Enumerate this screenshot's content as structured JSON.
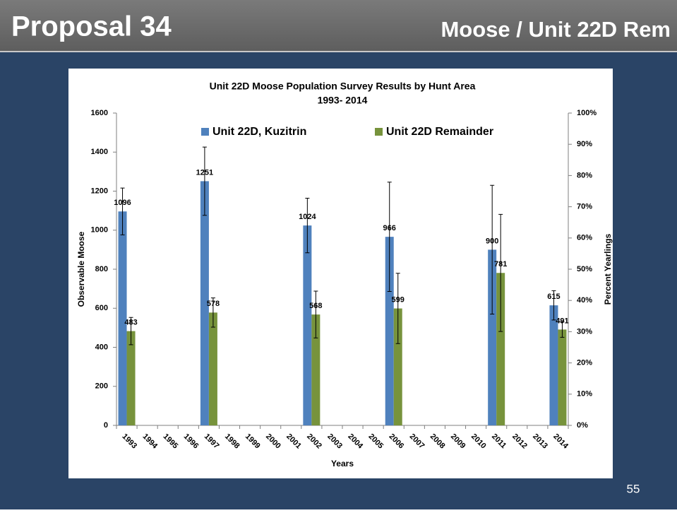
{
  "header": {
    "title": "Proposal 34",
    "subtitle": "Moose / Unit 22D Rem"
  },
  "page_number": "55",
  "chart_data": {
    "type": "bar",
    "title": "Unit 22D Moose Population Survey Results by Hunt Area",
    "subtitle": "1993- 2014",
    "x_label": "Years",
    "y_label": "Observable Moose",
    "y2_label": "Percent Yearlings",
    "categories": [
      "1993",
      "1994",
      "1995",
      "1996",
      "1997",
      "1998",
      "1999",
      "2000",
      "2001",
      "2002",
      "2003",
      "2004",
      "2005",
      "2006",
      "2007",
      "2008",
      "2009",
      "2010",
      "2011",
      "2012",
      "2013",
      "2014"
    ],
    "series": [
      {
        "name": "Unit 22D, Kuzitrin",
        "color": "#4f81bd",
        "values": [
          1096,
          null,
          null,
          null,
          1251,
          null,
          null,
          null,
          null,
          1024,
          null,
          null,
          null,
          966,
          null,
          null,
          null,
          null,
          900,
          null,
          null,
          615
        ],
        "errors": [
          120,
          null,
          null,
          null,
          175,
          null,
          null,
          null,
          null,
          140,
          null,
          null,
          null,
          280,
          null,
          null,
          null,
          null,
          330,
          null,
          null,
          75
        ]
      },
      {
        "name": "Unit 22D Remainder",
        "color": "#77933c",
        "values": [
          483,
          null,
          null,
          null,
          578,
          null,
          null,
          null,
          null,
          568,
          null,
          null,
          null,
          599,
          null,
          null,
          null,
          null,
          781,
          null,
          null,
          491
        ],
        "errors": [
          70,
          null,
          null,
          null,
          75,
          null,
          null,
          null,
          null,
          120,
          null,
          null,
          null,
          180,
          null,
          null,
          null,
          null,
          300,
          null,
          null,
          40
        ]
      }
    ],
    "ylim": [
      0,
      1600
    ],
    "yticks": [
      0,
      200,
      400,
      600,
      800,
      1000,
      1200,
      1400,
      1600
    ],
    "y2lim": [
      0,
      100
    ],
    "y2ticks": [
      {
        "value": 0,
        "label": "0%"
      },
      {
        "value": 10,
        "label": "10%"
      },
      {
        "value": 20,
        "label": "20%"
      },
      {
        "value": 30,
        "label": "30%"
      },
      {
        "value": 40,
        "label": "40%"
      },
      {
        "value": 50,
        "label": "50%"
      },
      {
        "value": 60,
        "label": "60%"
      },
      {
        "value": 70,
        "label": "70%"
      },
      {
        "value": 80,
        "label": "80%"
      },
      {
        "value": 90,
        "label": "90%"
      },
      {
        "value": 100,
        "label": "100%"
      }
    ],
    "legend": "top",
    "grid": false
  }
}
